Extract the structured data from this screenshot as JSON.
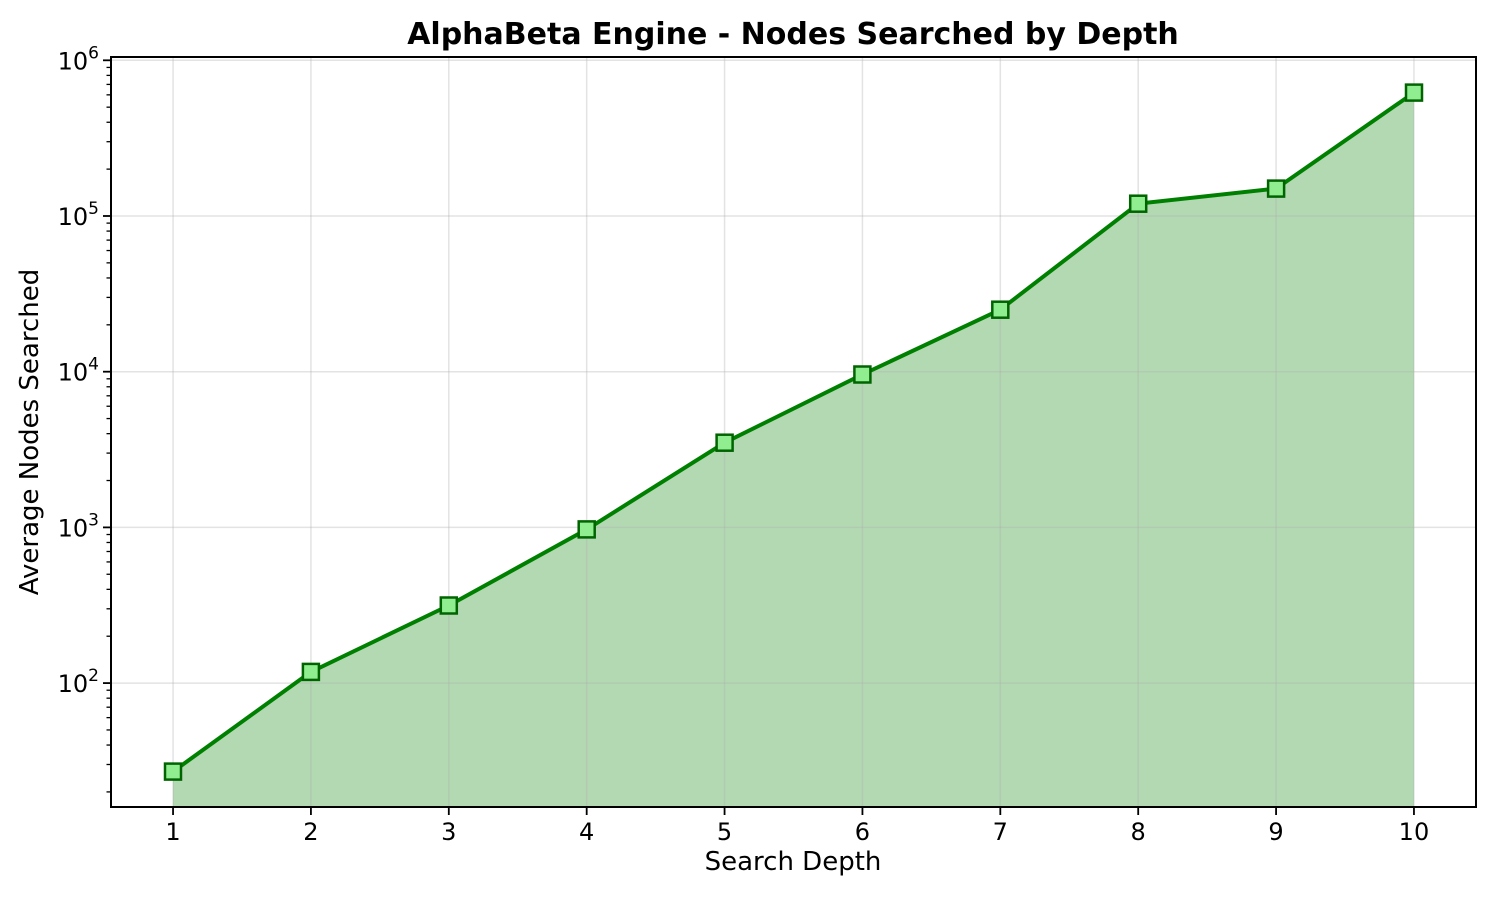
{
  "chart_data": {
    "type": "area",
    "title": "AlphaBeta Engine - Nodes Searched by Depth",
    "xlabel": "Search Depth",
    "ylabel": "Average Nodes Searched",
    "series": [
      {
        "name": "Average nodes searched",
        "x": [
          1,
          2,
          3,
          4,
          5,
          6,
          7,
          8,
          9,
          10
        ],
        "y": [
          27,
          118,
          315,
          970,
          3500,
          9600,
          25000,
          120000,
          150000,
          620000
        ]
      }
    ],
    "xlim": [
      0.55,
      10.45
    ],
    "ylim": [
      16,
      1050000
    ],
    "yscale": "log",
    "x_ticks": [
      1,
      2,
      3,
      4,
      5,
      6,
      7,
      8,
      9,
      10
    ],
    "y_tick_exponents": [
      2,
      3,
      4,
      5,
      6
    ],
    "grid": true,
    "legend": false,
    "marker": "square",
    "colors": {
      "line": "#008000",
      "marker_face": "#90ee90",
      "marker_edge": "#006400",
      "area_fill": "#008000",
      "area_fill_opacity": 0.3,
      "grid": "#b0b0b0",
      "axis": "#000000",
      "background": "#ffffff"
    }
  }
}
